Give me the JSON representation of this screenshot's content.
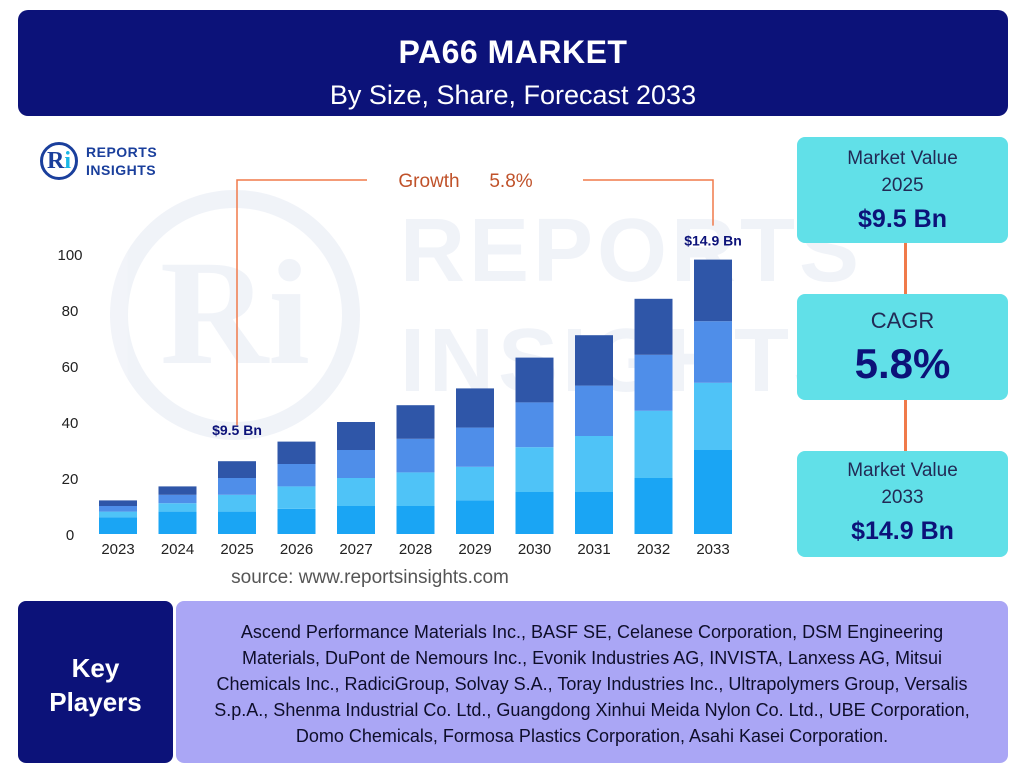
{
  "header": {
    "title": "PA66 MARKET",
    "subtitle": "By Size, Share, Forecast 2033"
  },
  "logo": {
    "line1": "REPORTS",
    "line2": "INSIGHTS",
    "mark": "Ri"
  },
  "watermark": {
    "line1": "REPORTS",
    "line2": "INSIGHTS"
  },
  "colors": {
    "navy": "#0c1279",
    "cyan_card": "#61e0e8",
    "lavender": "#aaa6f5",
    "accent_line": "#f07a4a",
    "growth_text": "#c0522a"
  },
  "chart_data": {
    "type": "bar",
    "stacked": true,
    "categories": [
      "2023",
      "2024",
      "2025",
      "2026",
      "2027",
      "2028",
      "2029",
      "2030",
      "2031",
      "2032",
      "2033"
    ],
    "ylim": [
      0,
      100
    ],
    "yticks": [
      0,
      20,
      40,
      60,
      80,
      100
    ],
    "grid": false,
    "series": [
      {
        "color": "#1aa5f4",
        "values": [
          6,
          8,
          8,
          9,
          10,
          10,
          12,
          15,
          15,
          20,
          30
        ]
      },
      {
        "color": "#4fc3f7",
        "values": [
          2,
          3,
          6,
          8,
          10,
          12,
          12,
          16,
          20,
          24,
          24
        ]
      },
      {
        "color": "#4f8ee9",
        "values": [
          2,
          3,
          6,
          8,
          10,
          12,
          14,
          16,
          18,
          20,
          22
        ]
      },
      {
        "color": "#2f56a8",
        "values": [
          2,
          3,
          6,
          8,
          10,
          12,
          14,
          16,
          18,
          20,
          22
        ]
      }
    ],
    "annotations": {
      "growth_label": "Growth",
      "growth_value": "5.8%",
      "start_label": "$9.5 Bn",
      "end_label": "$14.9 Bn"
    }
  },
  "kpis": [
    {
      "label_line1": "Market Value",
      "label_line2": "2025",
      "value": "$9.5 Bn"
    },
    {
      "label": "CAGR",
      "value": "5.8%"
    },
    {
      "label_line1": "Market Value",
      "label_line2": "2033",
      "value": "$14.9 Bn"
    }
  ],
  "source": "source: www.reportsinsights.com",
  "key_players": {
    "label_line1": "Key",
    "label_line2": "Players",
    "text": "Ascend Performance Materials Inc., BASF SE, Celanese Corporation, DSM Engineering Materials, DuPont de Nemours Inc., Evonik Industries AG, INVISTA, Lanxess AG, Mitsui Chemicals Inc., RadiciGroup, Solvay S.A., Toray Industries Inc., Ultrapolymers Group, Versalis S.p.A., Shenma Industrial Co. Ltd., Guangdong Xinhui Meida Nylon Co. Ltd., UBE Corporation, Domo Chemicals, Formosa Plastics Corporation, Asahi Kasei Corporation."
  }
}
